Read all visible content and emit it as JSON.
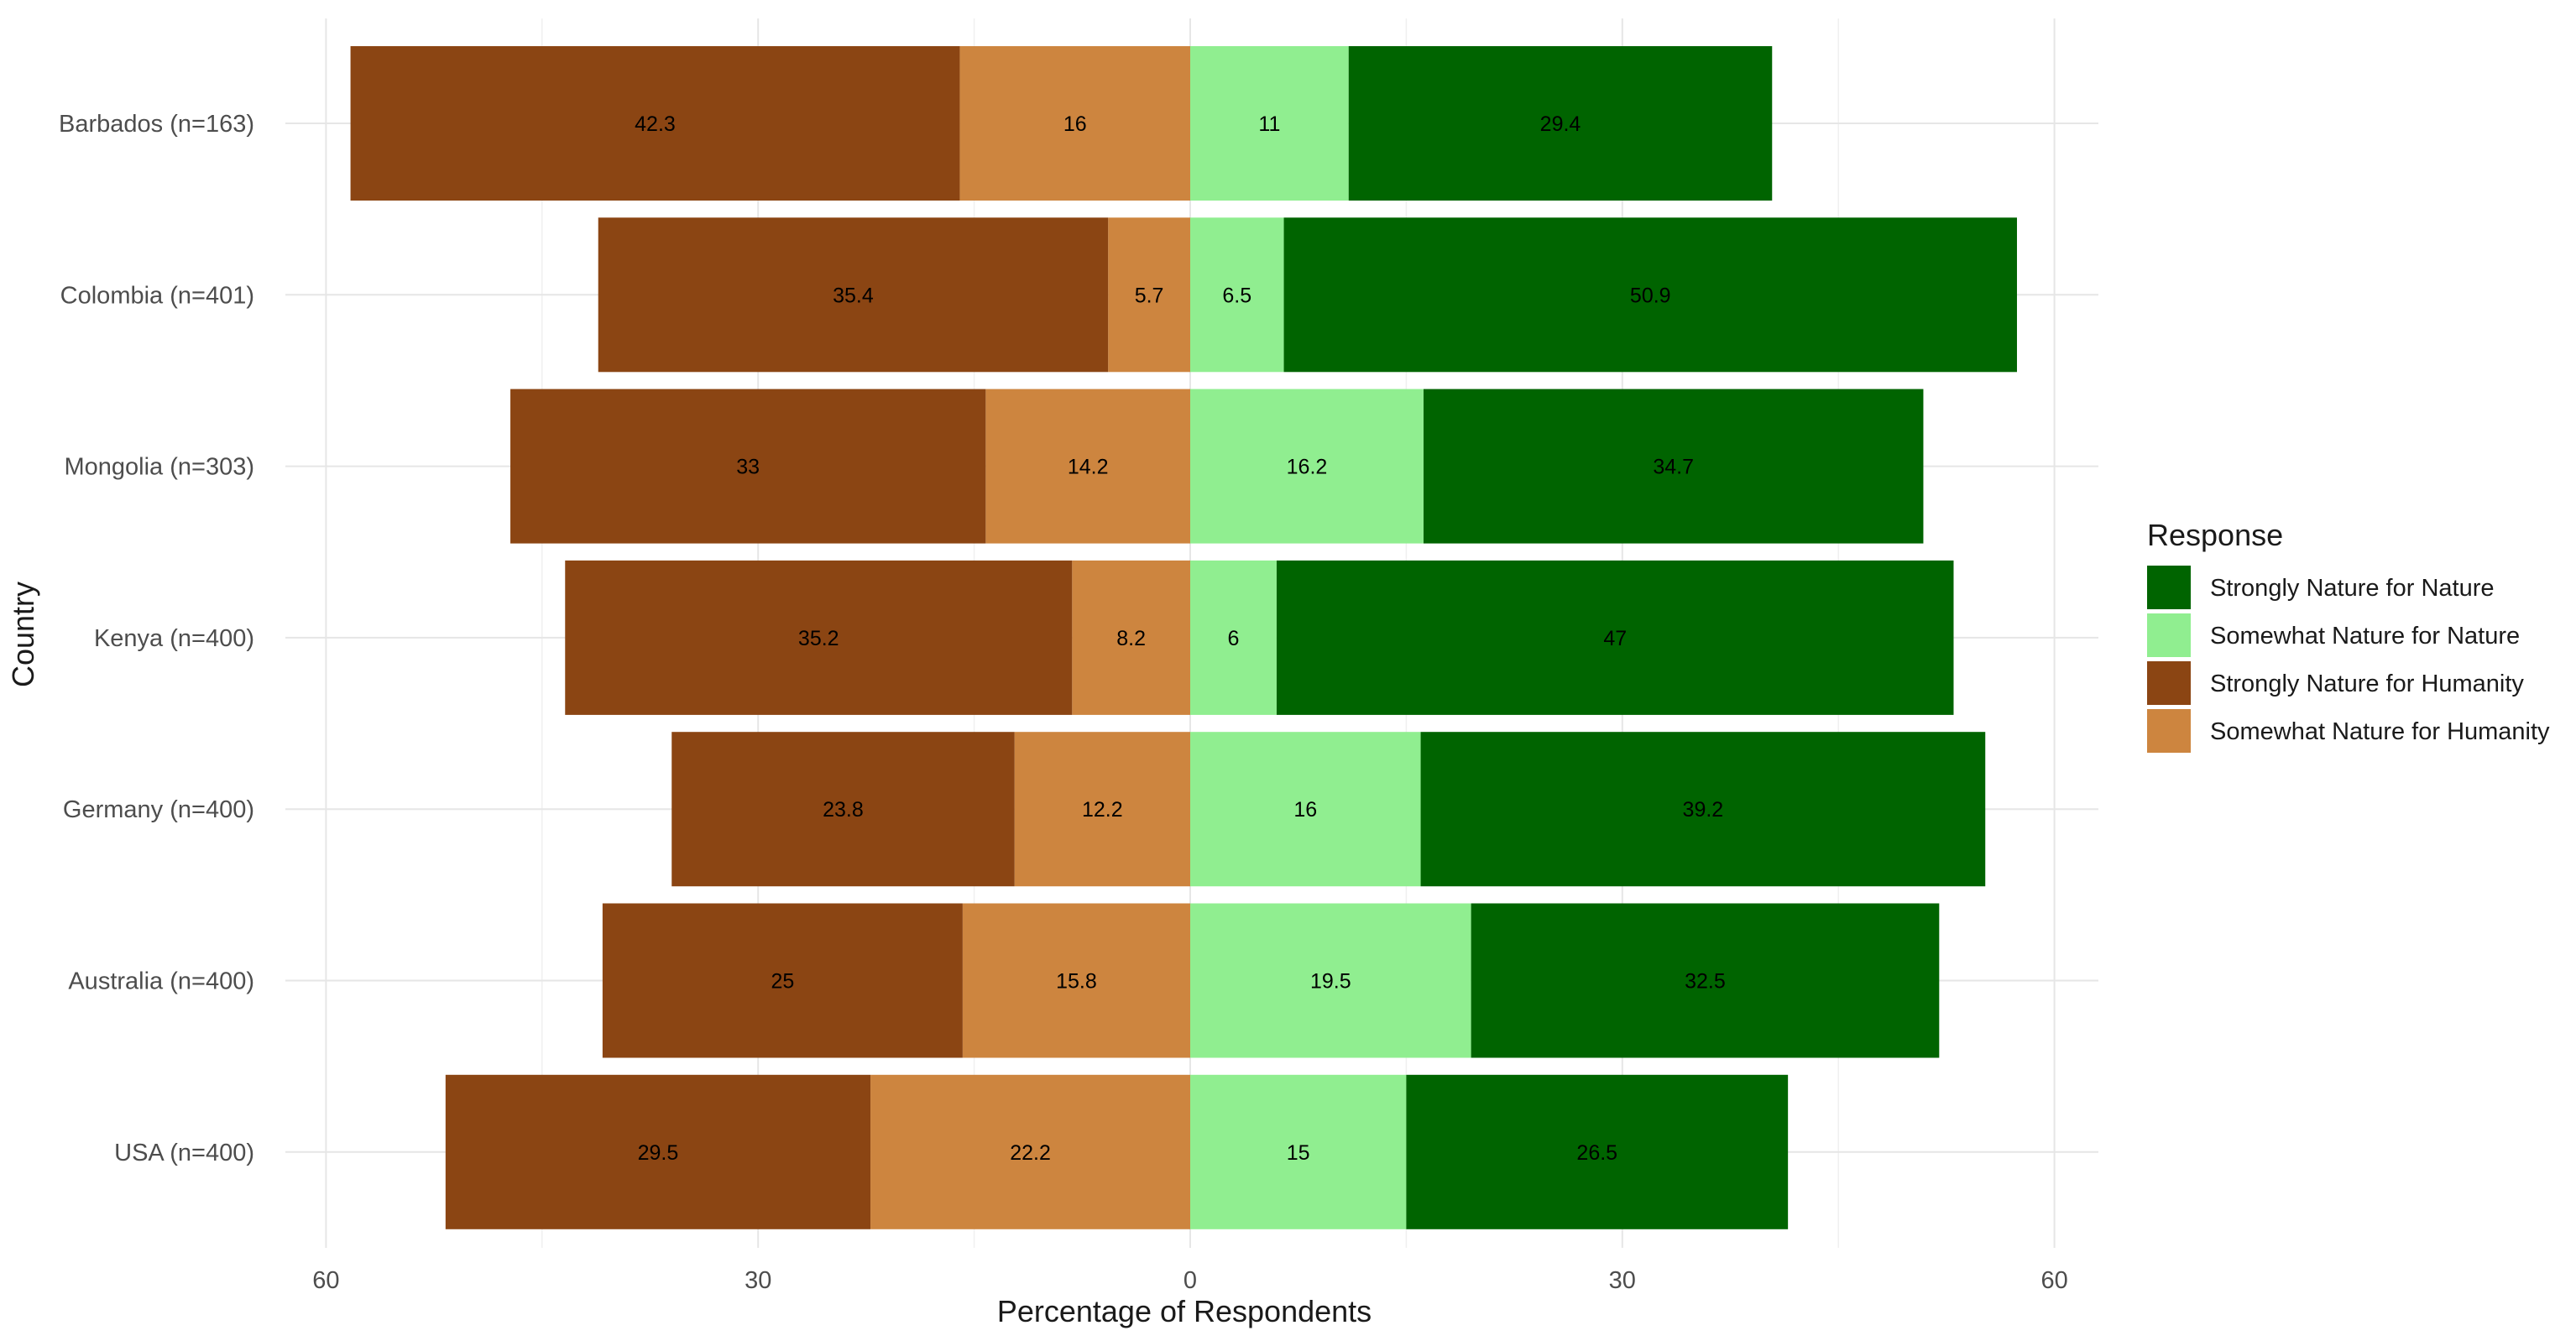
{
  "chart_data": {
    "type": "bar",
    "orientation": "horizontal",
    "layout": "diverging-stacked",
    "ylabel": "Country",
    "xlabel": "Percentage of Respondents",
    "xlim": [
      -60,
      60
    ],
    "x_ticks": [
      -60,
      -30,
      0,
      30,
      60
    ],
    "x_tick_labels": [
      "60",
      "30",
      "0",
      "30",
      "60"
    ],
    "grid": true,
    "legend": {
      "title": "Response",
      "position": "right"
    },
    "categories": [
      "Barbados (n=163)",
      "Colombia (n=401)",
      "Mongolia (n=303)",
      "Kenya (n=400)",
      "Germany (n=400)",
      "Australia (n=400)",
      "USA (n=400)"
    ],
    "series": [
      {
        "name": "Strongly Nature for Nature",
        "side": "right",
        "order": 2,
        "color": "#006400",
        "values": [
          29.4,
          50.9,
          34.7,
          47,
          39.2,
          32.5,
          26.5
        ]
      },
      {
        "name": "Somewhat Nature for Nature",
        "side": "right",
        "order": 1,
        "color": "#90EE90",
        "values": [
          11,
          6.5,
          16.2,
          6,
          16,
          19.5,
          15
        ]
      },
      {
        "name": "Strongly Nature for Humanity",
        "side": "left",
        "order": 2,
        "color": "#8B4513",
        "values": [
          42.3,
          35.4,
          33,
          35.2,
          23.8,
          25,
          29.5
        ]
      },
      {
        "name": "Somewhat Nature for Humanity",
        "side": "left",
        "order": 1,
        "color": "#CD853F",
        "values": [
          16,
          5.7,
          14.2,
          8.2,
          12.2,
          15.8,
          22.2
        ]
      }
    ]
  }
}
